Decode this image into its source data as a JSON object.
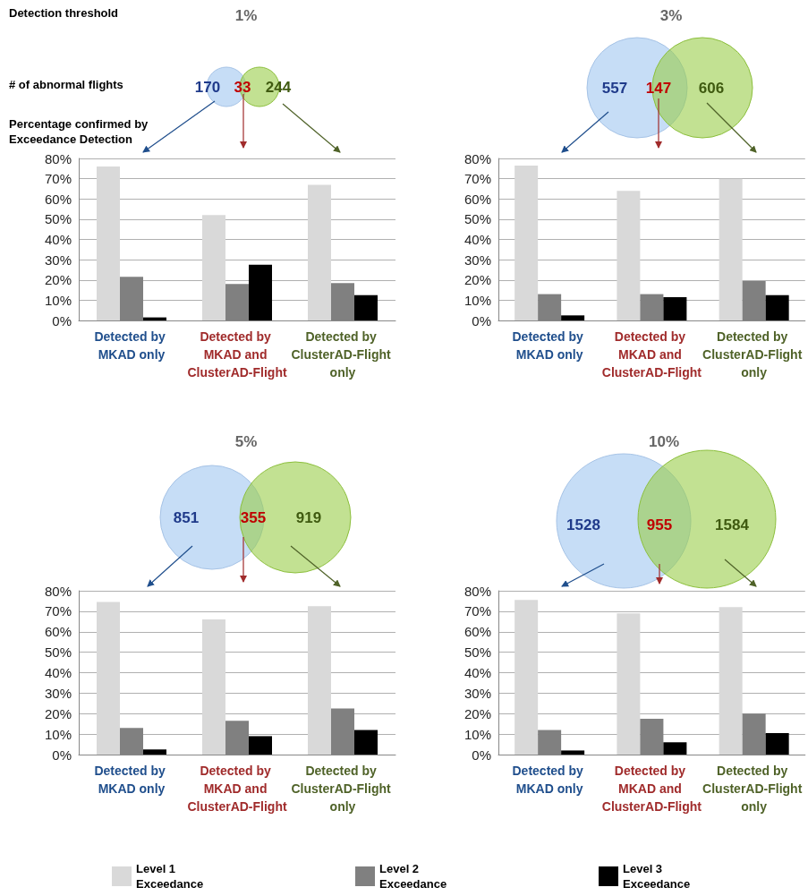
{
  "chart_data": [
    {
      "type": "bar",
      "title": "1%",
      "categories": [
        "Detected by MKAD only",
        "Detected by MKAD and ClusterAD-Flight",
        "Detected by ClusterAD-Flight only"
      ],
      "series": [
        {
          "color": "#d9d9d9",
          "values": [
            76,
            52,
            67
          ]
        },
        {
          "color": "#808080",
          "values": [
            21.5,
            18,
            18.5
          ]
        },
        {
          "color": "#000000",
          "values": [
            1.5,
            27.5,
            12.5
          ]
        }
      ],
      "ylim": [
        0,
        80
      ],
      "yticks": [
        {
          "value": 0,
          "label": "0%"
        },
        {
          "value": 10,
          "label": "10%"
        },
        {
          "value": 20,
          "label": "20%"
        },
        {
          "value": 30,
          "label": "30%"
        },
        {
          "value": 40,
          "label": "40%"
        },
        {
          "value": 50,
          "label": "50%"
        },
        {
          "value": 60,
          "label": "60%"
        },
        {
          "value": 70,
          "label": "70%"
        },
        {
          "value": 80,
          "label": "80%"
        }
      ],
      "grid": "y",
      "legend": false,
      "annotations": [
        "170",
        "33",
        "244",
        "Detection threshold",
        "# of abnormal flights",
        "Percentage confirmed by Exceedance Detection"
      ]
    },
    {
      "type": "bar",
      "title": "3%",
      "categories": [
        "Detected by MKAD only",
        "Detected by MKAD and ClusterAD-Flight",
        "Detected by ClusterAD-Flight only"
      ],
      "series": [
        {
          "color": "#d9d9d9",
          "values": [
            76.5,
            64,
            70
          ]
        },
        {
          "color": "#808080",
          "values": [
            13,
            13,
            19.5
          ]
        },
        {
          "color": "#000000",
          "values": [
            2.5,
            11.5,
            12.5
          ]
        }
      ],
      "ylim": [
        0,
        80
      ],
      "yticks": [
        {
          "value": 0,
          "label": "0%"
        },
        {
          "value": 10,
          "label": "10%"
        },
        {
          "value": 20,
          "label": "20%"
        },
        {
          "value": 30,
          "label": "30%"
        },
        {
          "value": 40,
          "label": "40%"
        },
        {
          "value": 50,
          "label": "50%"
        },
        {
          "value": 60,
          "label": "60%"
        },
        {
          "value": 70,
          "label": "70%"
        },
        {
          "value": 80,
          "label": "80%"
        }
      ],
      "grid": "y",
      "legend": false,
      "annotations": [
        "557",
        "147",
        "606"
      ]
    },
    {
      "type": "bar",
      "title": "5%",
      "categories": [
        "Detected by MKAD only",
        "Detected by MKAD and ClusterAD-Flight",
        "Detected by ClusterAD-Flight only"
      ],
      "series": [
        {
          "color": "#d9d9d9",
          "values": [
            74.5,
            66,
            72.5
          ]
        },
        {
          "color": "#808080",
          "values": [
            13,
            16.5,
            22.5
          ]
        },
        {
          "color": "#000000",
          "values": [
            2.5,
            9,
            12
          ]
        }
      ],
      "ylim": [
        0,
        80
      ],
      "yticks": [
        {
          "value": 0,
          "label": "0%"
        },
        {
          "value": 10,
          "label": "10%"
        },
        {
          "value": 20,
          "label": "20%"
        },
        {
          "value": 30,
          "label": "30%"
        },
        {
          "value": 40,
          "label": "40%"
        },
        {
          "value": 50,
          "label": "50%"
        },
        {
          "value": 60,
          "label": "60%"
        },
        {
          "value": 70,
          "label": "70%"
        },
        {
          "value": 80,
          "label": "80%"
        }
      ],
      "grid": "y",
      "legend": false,
      "annotations": [
        "851",
        "355",
        "919"
      ]
    },
    {
      "type": "bar",
      "title": "10%",
      "categories": [
        "Detected by MKAD only",
        "Detected by MKAD and ClusterAD-Flight",
        "Detected by ClusterAD-Flight only"
      ],
      "series": [
        {
          "name": "Level 1 Exceedance",
          "color": "#d9d9d9",
          "values": [
            75.5,
            69,
            72
          ]
        },
        {
          "name": "Level 2 Exceedance",
          "color": "#808080",
          "values": [
            12,
            17.5,
            20
          ]
        },
        {
          "name": "Level 3 Exceedance",
          "color": "#000000",
          "values": [
            2,
            6,
            10.5
          ]
        }
      ],
      "ylim": [
        0,
        80
      ],
      "yticks": [
        {
          "value": 0,
          "label": "0%"
        },
        {
          "value": 10,
          "label": "10%"
        },
        {
          "value": 20,
          "label": "20%"
        },
        {
          "value": 30,
          "label": "30%"
        },
        {
          "value": 40,
          "label": "40%"
        },
        {
          "value": 50,
          "label": "50%"
        },
        {
          "value": 60,
          "label": "60%"
        },
        {
          "value": 70,
          "label": "70%"
        },
        {
          "value": 80,
          "label": "80%"
        }
      ],
      "grid": "y",
      "legend": "bottom",
      "annotations": [
        "1528",
        "955",
        "1584"
      ]
    }
  ]
}
